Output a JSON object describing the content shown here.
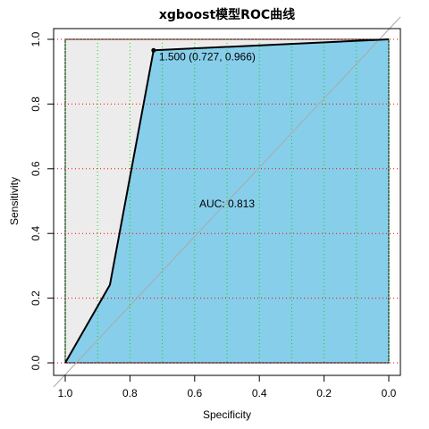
{
  "chart_data": {
    "type": "line",
    "title": "xgboost模型ROC曲线",
    "xlabel": "Specificity",
    "ylabel": "Sensitivity",
    "xlim": [
      1.0,
      0.0
    ],
    "ylim": [
      0.0,
      1.0
    ],
    "x_reversed": true,
    "x_ticks": [
      "1.0",
      "0.8",
      "0.6",
      "0.4",
      "0.2",
      "0.0"
    ],
    "y_ticks": [
      "0.0",
      "0.2",
      "0.4",
      "0.6",
      "0.8",
      "1.0"
    ],
    "grid": true,
    "series": [
      {
        "x": [
          1.0,
          0.862,
          0.727,
          0.0
        ],
        "y": [
          0.0,
          0.241,
          0.966,
          1.0
        ]
      }
    ],
    "best_threshold": {
      "label": "1.500 (0.727, 0.966)",
      "specificity": 0.727,
      "sensitivity": 0.966
    },
    "auc_label": "AUC: 0.813",
    "auc_position": {
      "specificity": 0.5,
      "sensitivity": 0.48
    },
    "colors": {
      "auc_fill": "#87ceeb",
      "outer_fill": "#ececec",
      "curve": "#000000",
      "diagonal": "#aaaaaa",
      "grid_vertical": "#00dd00",
      "grid_horizontal": "#ff0000"
    }
  }
}
